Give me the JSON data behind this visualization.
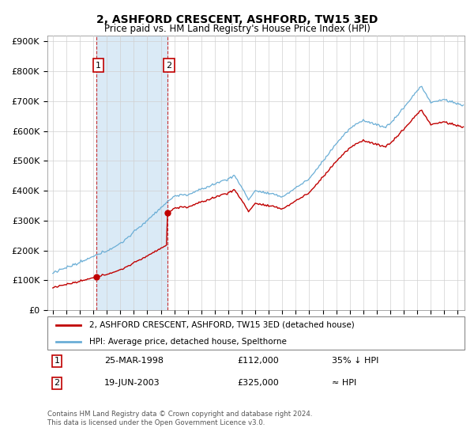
{
  "title": "2, ASHFORD CRESCENT, ASHFORD, TW15 3ED",
  "subtitle": "Price paid vs. HM Land Registry's House Price Index (HPI)",
  "sale1_date": "25-MAR-1998",
  "sale1_price": 112000,
  "sale1_label": "35% ↓ HPI",
  "sale1_year": 1998.22,
  "sale2_date": "19-JUN-2003",
  "sale2_price": 325000,
  "sale2_label": "≈ HPI",
  "sale2_year": 2003.47,
  "legend_line1": "2, ASHFORD CRESCENT, ASHFORD, TW15 3ED (detached house)",
  "legend_line2": "HPI: Average price, detached house, Spelthorne",
  "footer": "Contains HM Land Registry data © Crown copyright and database right 2024.\nThis data is licensed under the Open Government Licence v3.0.",
  "hpi_color": "#6aaed6",
  "price_color": "#c00000",
  "sale_dot_color": "#c00000",
  "shaded_color": "#daeaf6",
  "yticks": [
    0,
    100000,
    200000,
    300000,
    400000,
    500000,
    600000,
    700000,
    800000,
    900000
  ],
  "ytick_labels": [
    "£0",
    "£100K",
    "£200K",
    "£300K",
    "£400K",
    "£500K",
    "£600K",
    "£700K",
    "£800K",
    "£900K"
  ],
  "xmin": 1994.6,
  "xmax": 2025.5,
  "ymin": 0,
  "ymax": 920000
}
